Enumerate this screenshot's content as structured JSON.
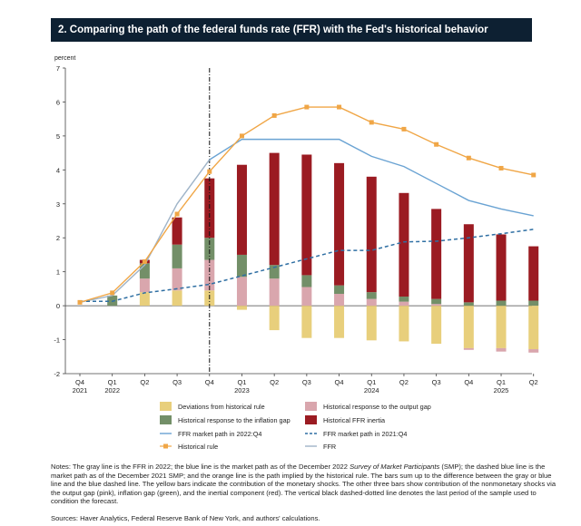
{
  "title": "2. Comparing the path of the federal funds rate (FFR) with the Fed's historical behavior",
  "notes": {
    "part1": "Notes: The gray line is the FFR in 2022; the blue line is the market path as of the December 2022 ",
    "italic": "Survey of Market Participants",
    "part2": " (SMP); the dashed blue line is the market path as of the December 2021 SMP; and the orange line is the path implied by the historical rule. The bars sum up to the difference between the gray or blue line and the blue dashed line. The yellow bars indicate the contribution of the monetary shocks. The other three bars show contribution of the nonmonetary shocks via the output gap (pink), inflation gap (green), and the inertial component (red). The vertical black dashed-dotted line denotes the last period of the sample used to condition the forecast."
  },
  "sources": "Sources: Haver Analytics, Federal Reserve Bank of New York, and authors' calculations.",
  "colors": {
    "deviation": "#e8cf7c",
    "output_gap": "#d9a6ad",
    "inflation_gap": "#738f68",
    "inertia": "#9b1b22",
    "dec22": "#6aa3d3",
    "dec21": "#2f6fa3",
    "rule": "#f0a646",
    "ffr": "#9fb4c8"
  },
  "chart_data": {
    "type": "bar",
    "ylabel": "percent",
    "ylim": [
      -2,
      7
    ],
    "yticks": [
      -2,
      -1,
      0,
      1,
      2,
      3,
      4,
      5,
      6,
      7
    ],
    "categories": [
      "Q4 2021",
      "Q1 2022",
      "Q2",
      "Q3",
      "Q4",
      "Q1 2023",
      "Q2",
      "Q3",
      "Q4",
      "Q1 2024",
      "Q2",
      "Q3",
      "Q4",
      "Q1 2025",
      "Q2"
    ],
    "tick_labels": [
      {
        "q": "Q4",
        "y": "2021"
      },
      {
        "q": "Q1",
        "y": "2022"
      },
      {
        "q": "Q2",
        "y": ""
      },
      {
        "q": "Q3",
        "y": ""
      },
      {
        "q": "Q4",
        "y": ""
      },
      {
        "q": "Q1",
        "y": "2023"
      },
      {
        "q": "Q2",
        "y": ""
      },
      {
        "q": "Q3",
        "y": ""
      },
      {
        "q": "Q4",
        "y": ""
      },
      {
        "q": "Q1",
        "y": "2024"
      },
      {
        "q": "Q2",
        "y": ""
      },
      {
        "q": "Q3",
        "y": ""
      },
      {
        "q": "Q4",
        "y": ""
      },
      {
        "q": "Q1",
        "y": "2025"
      },
      {
        "q": "Q2",
        "y": ""
      }
    ],
    "conditioning_period": "Q4",
    "bars": {
      "deviation": [
        0,
        0,
        0.4,
        0.45,
        0.45,
        -0.12,
        -0.72,
        -0.95,
        -0.95,
        -1.02,
        -1.05,
        -1.12,
        -1.25,
        -1.25,
        -1.28
      ],
      "output_gap": [
        0,
        0,
        0.4,
        0.65,
        0.9,
        0.85,
        0.8,
        0.55,
        0.35,
        0.2,
        0.12,
        0.05,
        -0.05,
        -0.1,
        -0.1
      ],
      "inflation_gap": [
        0,
        0.3,
        0.45,
        0.7,
        0.65,
        0.65,
        0.4,
        0.35,
        0.25,
        0.2,
        0.15,
        0.15,
        0.1,
        0.15,
        0.15
      ],
      "inertia": [
        0,
        0,
        0.1,
        0.8,
        1.75,
        2.65,
        3.3,
        3.55,
        3.6,
        3.4,
        3.05,
        2.65,
        2.3,
        1.95,
        1.6
      ]
    },
    "series": [
      {
        "key": "ffr",
        "name": "FFR",
        "values": [
          0.1,
          0.3,
          1.2,
          3.0,
          4.3,
          null,
          null,
          null,
          null,
          null,
          null,
          null,
          null,
          null,
          null
        ]
      },
      {
        "key": "dec22",
        "name": "FFR market path in 2022:Q4",
        "values": [
          null,
          null,
          null,
          null,
          4.3,
          4.9,
          4.9,
          4.9,
          4.9,
          4.4,
          4.1,
          3.6,
          3.1,
          2.85,
          2.65
        ]
      },
      {
        "key": "dec21",
        "name": "FFR market path in 2021:Q4",
        "values": [
          0.13,
          0.13,
          0.38,
          0.5,
          0.63,
          0.88,
          1.13,
          1.38,
          1.63,
          1.63,
          1.88,
          1.9,
          2.0,
          2.12,
          2.25
        ]
      },
      {
        "key": "rule",
        "name": "Historical rule",
        "values": [
          0.1,
          0.38,
          1.3,
          2.7,
          3.95,
          5.0,
          5.6,
          5.85,
          5.85,
          5.4,
          5.2,
          4.75,
          4.35,
          4.05,
          3.85
        ]
      }
    ],
    "legend": [
      {
        "key": "deviation",
        "kind": "bar",
        "label": "Deviations from historical rule"
      },
      {
        "key": "output_gap",
        "kind": "bar",
        "label": "Historical response to the output gap"
      },
      {
        "key": "inflation_gap",
        "kind": "bar",
        "label": "Historical response to the inflation gap"
      },
      {
        "key": "inertia",
        "kind": "bar",
        "label": "Historical FFR inertia"
      },
      {
        "key": "dec22",
        "kind": "line",
        "label": "FFR market path in 2022:Q4"
      },
      {
        "key": "dec21",
        "kind": "dashed",
        "label": "FFR market path in 2021:Q4"
      },
      {
        "key": "rule",
        "kind": "marker",
        "label": "Historical rule"
      },
      {
        "key": "ffr",
        "kind": "line",
        "label": "FFR"
      }
    ]
  }
}
